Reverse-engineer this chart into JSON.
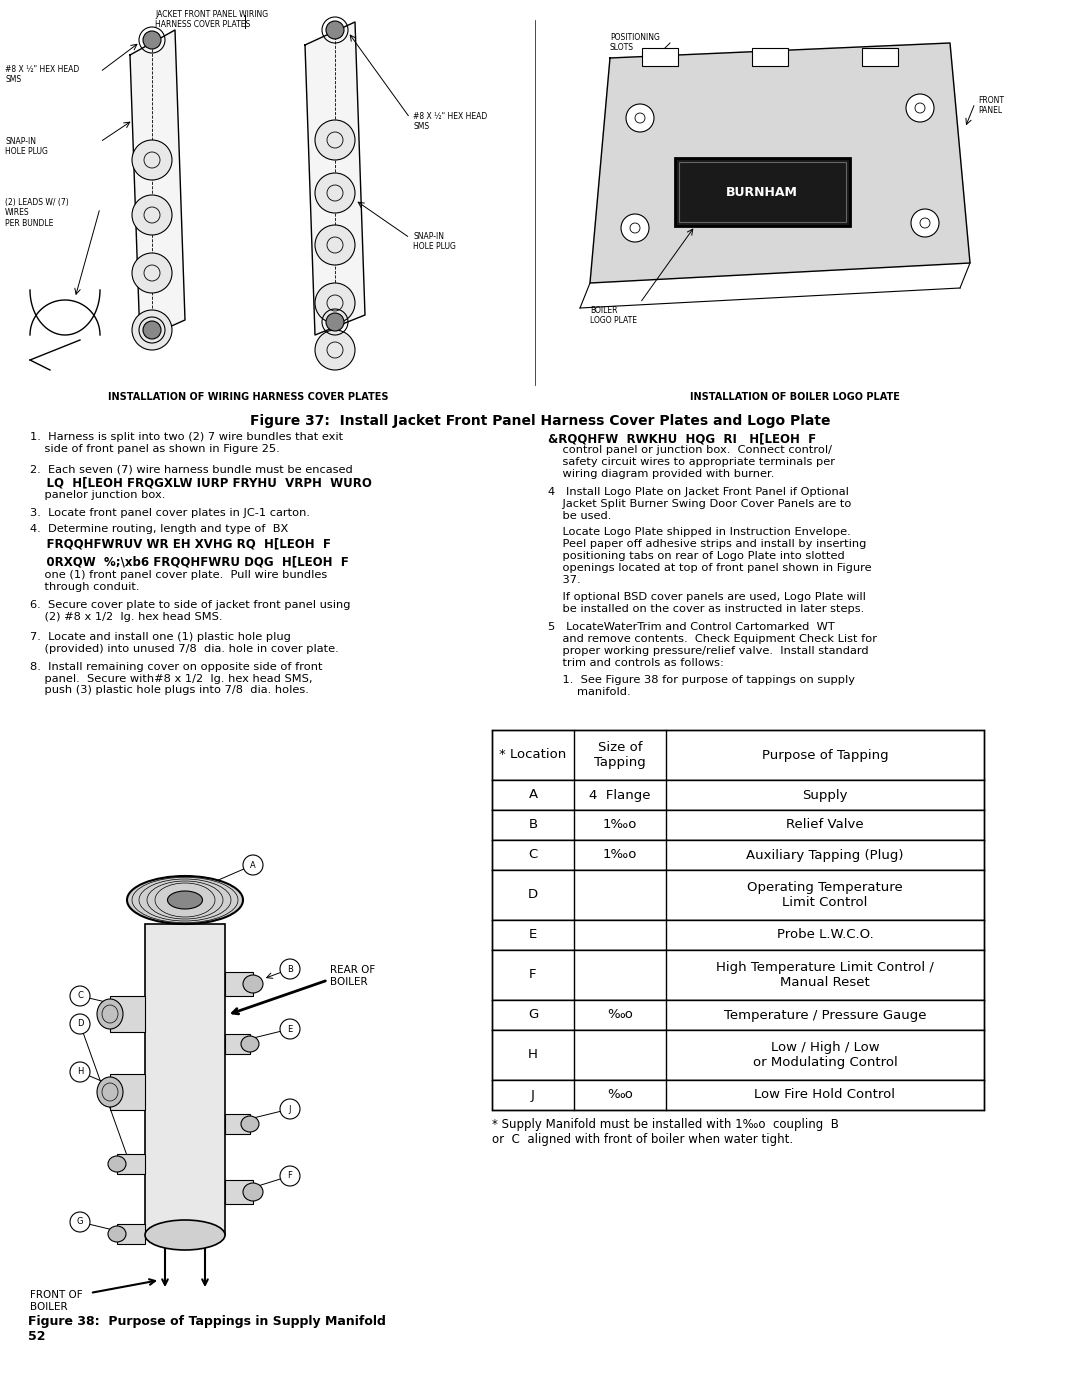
{
  "fig37_title": "Figure 37:  Install Jacket Front Panel Harness Cover Plates and Logo Plate",
  "fig37_cap_left": "INSTALLATION OF WIRING HARNESS COVER PLATES",
  "fig37_cap_right": "INSTALLATION OF BOILER LOGO PLATE",
  "fig38_caption": "Figure 38:  Purpose of Tappings in Supply Manifold",
  "fig38_page": "52",
  "table_headers": [
    "* Location",
    "Size of\nTapping",
    "Purpose of Tapping"
  ],
  "table_rows": [
    [
      "A",
      "4  Flange",
      "Supply"
    ],
    [
      "B",
      "1‰o",
      "Relief Valve"
    ],
    [
      "C",
      "1‰o",
      "Auxiliary Tapping (Plug)"
    ],
    [
      "D",
      "",
      "Operating Temperature\nLimit Control"
    ],
    [
      "E",
      "",
      "Probe L.W.C.O."
    ],
    [
      "F",
      "",
      "High Temperature Limit Control /\nManual Reset"
    ],
    [
      "G",
      "‰o",
      "Temperature / Pressure Gauge"
    ],
    [
      "H",
      "",
      "Low / High / Low\nor Modulating Control"
    ],
    [
      "J",
      "‰o",
      "Low Fire Hold Control"
    ]
  ],
  "table_footnote": "* Supply Manifold must be installed with 1‰o  coupling  B\nor  C  aligned with front of boiler when water tight.",
  "bg": "#ffffff"
}
